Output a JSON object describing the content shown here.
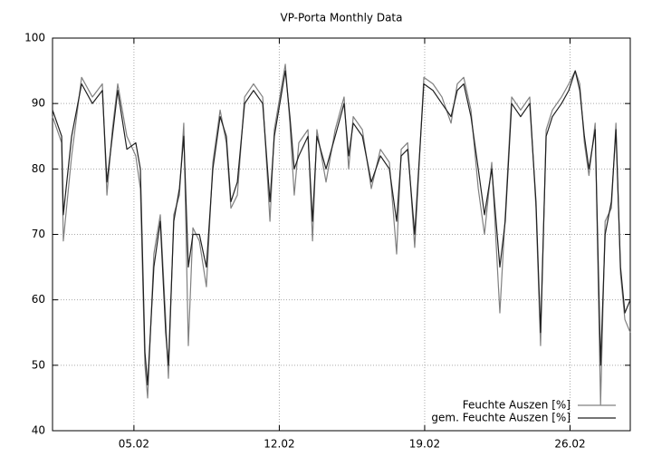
{
  "chart_data": {
    "type": "line",
    "title": "VP-Porta Monthly Data",
    "x": [
      1.08,
      1.52,
      1.6,
      2.0,
      2.48,
      3.0,
      3.48,
      3.7,
      3.96,
      4.22,
      4.66,
      5.09,
      5.31,
      5.53,
      5.66,
      5.96,
      6.27,
      6.53,
      6.66,
      6.92,
      7.19,
      7.4,
      7.62,
      7.84,
      8.15,
      8.49,
      8.8,
      9.15,
      9.45,
      9.67,
      9.98,
      10.33,
      10.76,
      11.2,
      11.55,
      11.76,
      12.29,
      12.51,
      12.72,
      12.94,
      13.38,
      13.6,
      13.81,
      14.25,
      14.69,
      15.12,
      15.34,
      15.56,
      16.0,
      16.43,
      16.87,
      17.3,
      17.65,
      17.87,
      18.18,
      18.52,
      18.96,
      19.4,
      19.83,
      20.27,
      20.57,
      20.88,
      21.23,
      21.58,
      21.88,
      22.23,
      22.62,
      22.88,
      23.19,
      23.62,
      24.06,
      24.36,
      24.58,
      24.85,
      25.15,
      25.59,
      25.94,
      26.25,
      26.47,
      26.69,
      26.91,
      27.21,
      27.47,
      27.69,
      27.99,
      28.21,
      28.43,
      28.64,
      28.9
    ],
    "series": [
      {
        "name": "Feuchte Auszen [%]",
        "color": "#808080",
        "values": [
          88,
          84,
          69,
          82,
          94,
          91,
          93,
          76,
          86,
          93,
          85,
          82,
          77,
          50,
          45,
          67,
          73,
          57,
          48,
          73,
          76,
          87,
          53,
          71,
          69,
          62,
          81,
          89,
          84,
          74,
          76,
          91,
          93,
          91,
          72,
          86,
          96,
          87,
          76,
          84,
          86,
          69,
          86,
          78,
          86,
          91,
          80,
          88,
          86,
          77,
          83,
          81,
          67,
          83,
          84,
          68,
          94,
          93,
          91,
          87,
          93,
          94,
          89,
          77,
          70,
          81,
          58,
          73,
          91,
          89,
          91,
          74,
          53,
          86,
          89,
          91,
          93,
          95,
          93,
          84,
          79,
          87,
          44,
          72,
          74,
          87,
          64,
          57,
          55
        ]
      },
      {
        "name": "gem. Feuchte Auszen [%]",
        "color": "#202020",
        "values": [
          89,
          85,
          73,
          85,
          93,
          90,
          92,
          78,
          85,
          92,
          83,
          84,
          80,
          52,
          47,
          65,
          72,
          55,
          50,
          72,
          77,
          85,
          65,
          70,
          70,
          65,
          80,
          88,
          85,
          75,
          78,
          90,
          92,
          90,
          75,
          85,
          95,
          88,
          80,
          82,
          85,
          72,
          85,
          80,
          85,
          90,
          82,
          87,
          85,
          78,
          82,
          80,
          72,
          82,
          83,
          70,
          93,
          92,
          90,
          88,
          92,
          93,
          88,
          80,
          73,
          80,
          65,
          72,
          90,
          88,
          90,
          75,
          55,
          85,
          88,
          90,
          92,
          95,
          92,
          85,
          80,
          86,
          50,
          70,
          75,
          86,
          65,
          58,
          60
        ]
      }
    ],
    "xlim": [
      1.08,
      28.9
    ],
    "xticks": [
      {
        "value": 5,
        "label": "05.02"
      },
      {
        "value": 12,
        "label": "12.02"
      },
      {
        "value": 19,
        "label": "19.02"
      },
      {
        "value": 26,
        "label": "26.02"
      }
    ],
    "ylim": [
      40,
      100
    ],
    "yticks": [
      40,
      50,
      60,
      70,
      80,
      90,
      100
    ],
    "grid": true,
    "legend": "bottom-right"
  }
}
